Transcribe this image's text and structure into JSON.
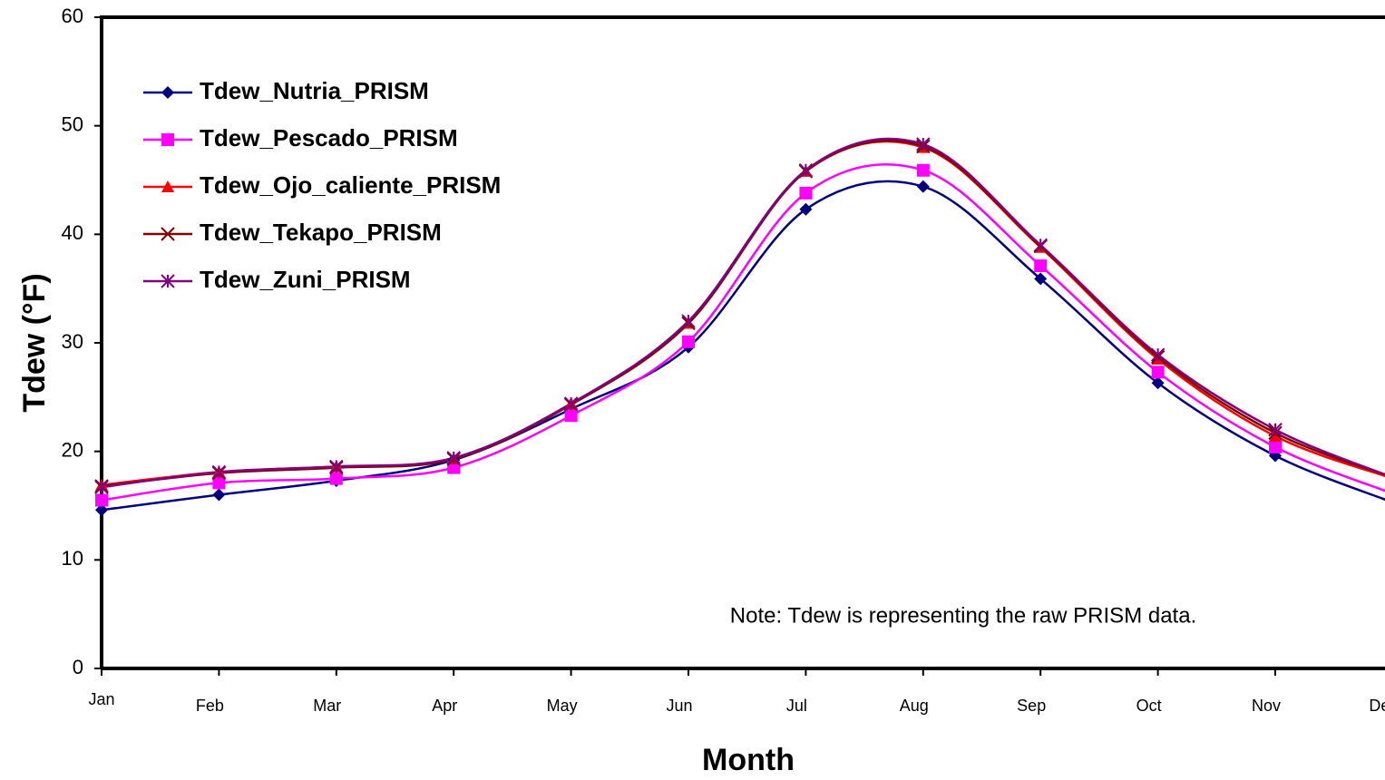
{
  "chart_data": {
    "type": "line",
    "y_label": "Tdew (°F)",
    "x_label": "Month",
    "annotation": "Note: Tdew is representing the raw PRISM data.",
    "categories": [
      "Jan",
      "Feb",
      "Mar",
      "Apr",
      "May",
      "Jun",
      "Jul",
      "Aug",
      "Sep",
      "Oct",
      "Nov",
      "Dec"
    ],
    "series": [
      {
        "name": "Tdew_Nutria_PRISM",
        "color": "#000080",
        "marker": "diamond",
        "values": [
          14.6,
          16.0,
          17.3,
          19.2,
          23.9,
          29.6,
          42.3,
          44.4,
          35.9,
          26.3,
          19.6,
          15.3
        ]
      },
      {
        "name": "Tdew_Pescado_PRISM",
        "color": "#ff00ff",
        "marker": "square",
        "values": [
          15.5,
          17.1,
          17.5,
          18.5,
          23.3,
          30.1,
          43.8,
          45.9,
          37.1,
          27.3,
          20.4,
          16.1
        ]
      },
      {
        "name": "Tdew_Ojo_caliente_PRISM",
        "color": "#ff0000",
        "marker": "triangle",
        "values": [
          16.9,
          18.1,
          18.6,
          19.3,
          24.4,
          31.8,
          45.8,
          48.0,
          38.8,
          28.5,
          21.4,
          17.5
        ]
      },
      {
        "name": "Tdew_Tekapo_PRISM",
        "color": "#800000",
        "marker": "x",
        "values": [
          16.8,
          18.0,
          18.5,
          19.3,
          24.3,
          31.8,
          45.8,
          48.1,
          38.9,
          28.7,
          21.7,
          17.6
        ]
      },
      {
        "name": "Tdew_Zuni_PRISM",
        "color": "#800080",
        "marker": "asterisk",
        "values": [
          16.7,
          18.1,
          18.6,
          19.4,
          24.4,
          32.0,
          45.9,
          48.3,
          39.0,
          28.9,
          22.0,
          17.6
        ]
      }
    ],
    "ylim": [
      0,
      60
    ],
    "yticks": [
      0,
      10,
      20,
      30,
      40,
      50,
      60
    ],
    "legend": "upper left",
    "smooth": true
  }
}
